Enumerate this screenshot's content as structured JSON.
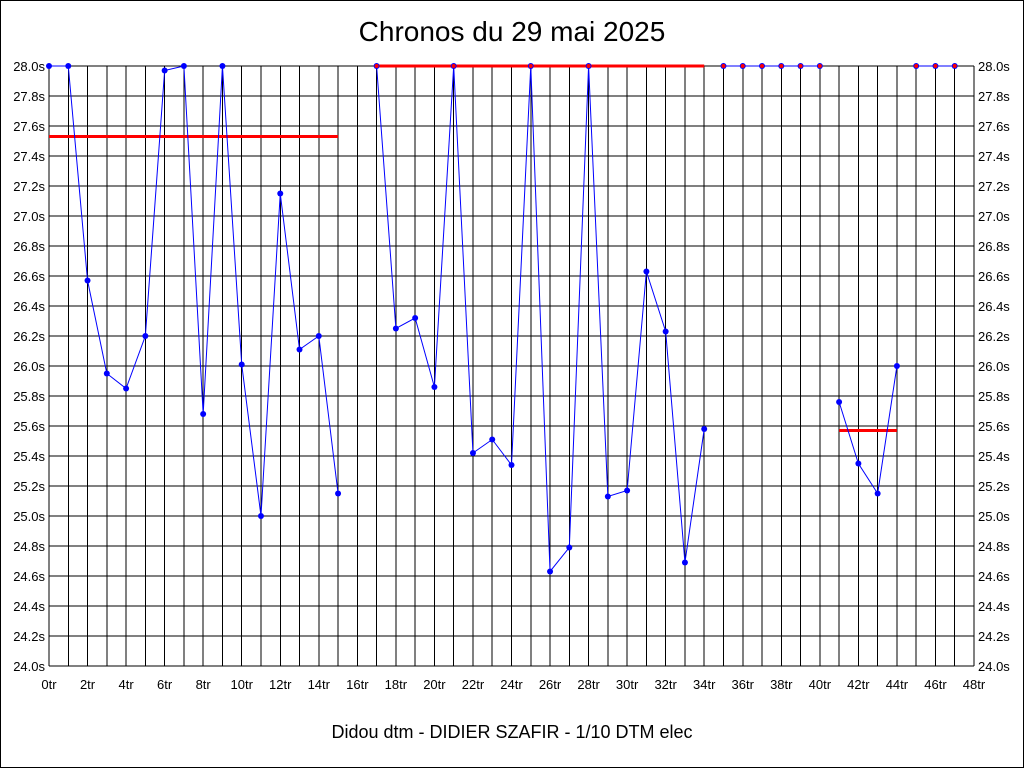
{
  "chart_data": {
    "type": "line",
    "title": "Chronos du 29 mai 2025",
    "footer": "Didou dtm - DIDIER SZAFIR - 1/10 DTM elec",
    "xlim": [
      0,
      48
    ],
    "ylim": [
      24.0,
      28.0
    ],
    "x_tick_labels": [
      "0tr",
      "2tr",
      "4tr",
      "6tr",
      "8tr",
      "10tr",
      "12tr",
      "14tr",
      "16tr",
      "18tr",
      "20tr",
      "22tr",
      "24tr",
      "26tr",
      "28tr",
      "30tr",
      "32tr",
      "34tr",
      "36tr",
      "38tr",
      "40tr",
      "42tr",
      "44tr",
      "46tr",
      "48tr"
    ],
    "y_tick_labels": [
      "24.0s",
      "24.2s",
      "24.4s",
      "24.6s",
      "24.8s",
      "25.0s",
      "25.2s",
      "25.4s",
      "25.6s",
      "25.8s",
      "26.0s",
      "26.2s",
      "26.4s",
      "26.6s",
      "26.8s",
      "27.0s",
      "27.2s",
      "27.4s",
      "27.6s",
      "27.8s",
      "28.0s"
    ],
    "grid": true,
    "colors": {
      "series": "#0000ff",
      "average": "#ff0000",
      "grid": "#000000"
    },
    "series": [
      {
        "x": [
          0,
          1,
          2,
          3,
          4,
          5,
          6,
          7,
          8,
          9,
          10,
          11,
          12,
          13,
          14,
          15
        ],
        "y": [
          28.0,
          28.0,
          26.57,
          25.95,
          25.85,
          26.2,
          27.97,
          28.0,
          25.68,
          28.0,
          26.01,
          25.0,
          27.15,
          26.11,
          26.2,
          25.15
        ]
      },
      {
        "x": [
          17,
          18,
          19,
          20,
          21,
          22,
          23,
          24,
          25,
          26,
          27,
          28,
          29,
          30,
          31,
          32,
          33,
          34
        ],
        "y": [
          28.0,
          26.25,
          26.32,
          25.86,
          28.0,
          25.42,
          25.51,
          25.34,
          28.0,
          24.63,
          24.79,
          28.0,
          25.13,
          25.17,
          26.63,
          26.23,
          24.69,
          25.58
        ]
      },
      {
        "x": [
          35,
          36,
          37,
          38,
          39,
          40
        ],
        "y": [
          28.0,
          28.0,
          28.0,
          28.0,
          28.0,
          28.0
        ]
      },
      {
        "x": [
          41,
          42,
          43,
          44
        ],
        "y": [
          25.76,
          25.35,
          25.15,
          26.0
        ]
      },
      {
        "x": [
          45,
          46,
          47
        ],
        "y": [
          28.0,
          28.0,
          28.0
        ]
      }
    ],
    "averages": [
      {
        "x_start": 0,
        "x_end": 15,
        "y": 27.53
      },
      {
        "x_start": 17,
        "x_end": 34,
        "y": 28.0
      },
      {
        "x_start": 41,
        "x_end": 44,
        "y": 25.57
      }
    ],
    "red_markers": [
      {
        "x": 17,
        "y": 28.0
      },
      {
        "x": 21,
        "y": 28.0
      },
      {
        "x": 25,
        "y": 28.0
      },
      {
        "x": 28,
        "y": 28.0
      },
      {
        "x": 35,
        "y": 28.0
      },
      {
        "x": 36,
        "y": 28.0
      },
      {
        "x": 37,
        "y": 28.0
      },
      {
        "x": 38,
        "y": 28.0
      },
      {
        "x": 39,
        "y": 28.0
      },
      {
        "x": 40,
        "y": 28.0
      },
      {
        "x": 45,
        "y": 28.0
      },
      {
        "x": 46,
        "y": 28.0
      },
      {
        "x": 47,
        "y": 28.0
      }
    ]
  }
}
